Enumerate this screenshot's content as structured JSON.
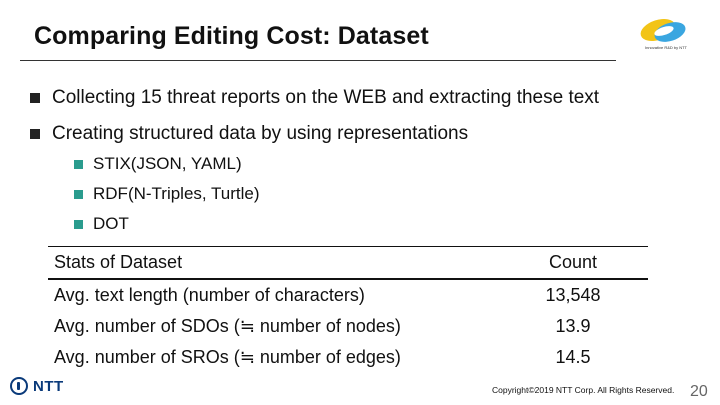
{
  "slide": {
    "title": "Comparing Editing Cost: Dataset",
    "logo_caption": "Innovative R&D by NTT"
  },
  "bullets": [
    {
      "text": "Collecting 15 threat reports on the WEB and extracting these text"
    },
    {
      "text": "Creating structured data by using representations",
      "sub": [
        {
          "text": "STIX(JSON, YAML)"
        },
        {
          "text": "RDF(N-Triples, Turtle)"
        },
        {
          "text": "DOT"
        }
      ]
    }
  ],
  "table": {
    "headers": [
      "Stats of Dataset",
      "Count"
    ],
    "rows": [
      [
        "Avg. text length (number of characters)",
        "13,548"
      ],
      [
        "Avg. number of SDOs (≒ number of nodes)",
        "13.9"
      ],
      [
        "Avg. number of SROs (≒ number of edges)",
        "14.5"
      ]
    ]
  },
  "footer": {
    "company": "NTT",
    "copyright": "Copyright©2019 NTT Corp. All Rights Reserved.",
    "page": "20"
  },
  "colors": {
    "sub_bullet": "#2a9c8e",
    "ntt_blue": "#0a3a7a",
    "logo_yellow": "#f2c417",
    "logo_blue": "#3aa6e0"
  }
}
